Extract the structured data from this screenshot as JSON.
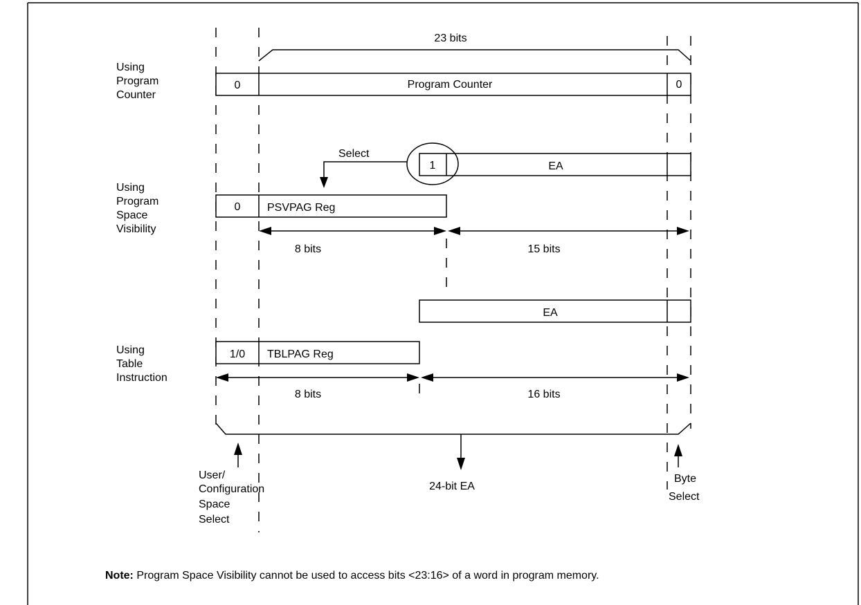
{
  "program_counter": {
    "section_label": "Using\nProgram\nCounter",
    "width_label": "23 bits",
    "cells": [
      "0",
      "Program Counter",
      "0"
    ]
  },
  "psv": {
    "section_label": "Using\nProgram\nSpace\nVisibility",
    "select_label": "Select",
    "ea_cells": [
      "1",
      "EA"
    ],
    "reg_cells": [
      "0",
      "PSVPAG Reg"
    ],
    "width_left": "8 bits",
    "width_right": "15 bits"
  },
  "table": {
    "section_label": "Using\nTable\nInstruction",
    "ea_label": "EA",
    "reg_cells": [
      "1/0",
      "TBLPAG Reg"
    ],
    "width_left": "8 bits",
    "width_right": "16 bits"
  },
  "bottom": {
    "user_config_label": "User/\nConfiguration\nSpace\nSelect",
    "ea_label": "24-bit EA",
    "byte_select_label": "Byte\nSelect"
  },
  "note": {
    "prefix": "Note:",
    "text": " Program Space Visibility cannot be used to access bits <23:16> of a word in program memory."
  }
}
